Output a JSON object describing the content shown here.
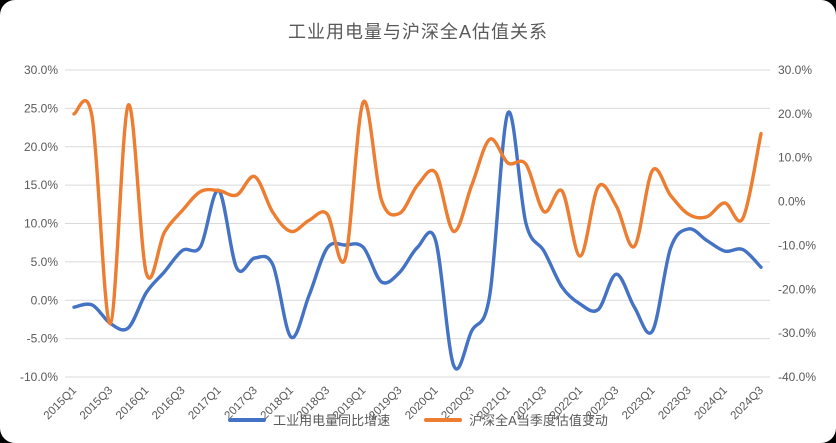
{
  "title": "工业用电量与沪深全A估值关系",
  "legend": {
    "series1_label": "工业用电量同比增速",
    "series2_label": "沪深全A当季度估值变动"
  },
  "colors": {
    "series1": "#4472C4",
    "series2": "#ED7D31",
    "gridline": "#D9D9D9",
    "axis_text": "#595959",
    "background": "#FFFFFF",
    "page_corner": "#000000"
  },
  "chart_data": {
    "type": "line",
    "title": "工业用电量与沪深全A估值关系",
    "grid": true,
    "legend_position": "bottom",
    "smooth_lines": true,
    "categories": [
      "2015Q1",
      "2015Q2",
      "2015Q3",
      "2015Q4",
      "2016Q1",
      "2016Q2",
      "2016Q3",
      "2016Q4",
      "2017Q1",
      "2017Q2",
      "2017Q3",
      "2017Q4",
      "2018Q1",
      "2018Q2",
      "2018Q3",
      "2018Q4",
      "2019Q1",
      "2019Q2",
      "2019Q3",
      "2019Q4",
      "2020Q1",
      "2020Q2",
      "2020Q3",
      "2020Q4",
      "2021Q1",
      "2021Q2",
      "2021Q3",
      "2021Q4",
      "2022Q1",
      "2022Q2",
      "2022Q3",
      "2022Q4",
      "2023Q1",
      "2023Q2",
      "2023Q3",
      "2023Q4",
      "2024Q1",
      "2024Q2",
      "2024Q3"
    ],
    "x_tick_labels": [
      "2015Q1",
      "2015Q3",
      "2016Q1",
      "2016Q3",
      "2017Q1",
      "2017Q3",
      "2018Q1",
      "2018Q3",
      "2019Q1",
      "2019Q3",
      "2020Q1",
      "2020Q3",
      "2021Q1",
      "2021Q3",
      "2022Q1",
      "2022Q3",
      "2023Q1",
      "2023Q3",
      "2024Q1",
      "2024Q3"
    ],
    "left_axis": {
      "min": -10,
      "max": 30,
      "step": 5,
      "labels": [
        "30.0%",
        "25.0%",
        "20.0%",
        "15.0%",
        "10.0%",
        "5.0%",
        "0.0%",
        "-5.0%",
        "-10.0%"
      ]
    },
    "right_axis": {
      "min": -40,
      "max": 30,
      "step": 10,
      "labels": [
        "30.0%",
        "20.0%",
        "10.0%",
        "0.0%",
        "-10.0%",
        "-20.0%",
        "-30.0%",
        "-40.0%"
      ]
    },
    "series": [
      {
        "name": "工业用电量同比增速",
        "axis": "left",
        "color": "#4472C4",
        "values": [
          -0.9,
          -0.6,
          -3.0,
          -3.6,
          1.0,
          3.7,
          6.5,
          7.0,
          14.3,
          4.2,
          5.5,
          4.6,
          -4.8,
          0.6,
          6.8,
          7.2,
          6.9,
          2.4,
          3.6,
          6.9,
          7.8,
          -8.5,
          -4.0,
          0.7,
          24.4,
          10.0,
          6.4,
          1.7,
          -0.5,
          -1.2,
          3.4,
          -0.9,
          -4.0,
          6.8,
          9.3,
          7.8,
          6.4,
          6.6,
          4.3
        ]
      },
      {
        "name": "沪深全A当季度估值变动",
        "axis": "right",
        "color": "#ED7D31",
        "values": [
          20.0,
          19.3,
          -27.8,
          22.0,
          -16.3,
          -7.0,
          -2.0,
          2.3,
          2.5,
          1.5,
          5.7,
          -2.5,
          -6.8,
          -4.3,
          -2.8,
          -13.0,
          22.7,
          0.5,
          -2.7,
          3.7,
          6.6,
          -6.8,
          3.7,
          14.2,
          8.8,
          8.5,
          -2.3,
          2.4,
          -12.4,
          3.4,
          -1.0,
          -10.2,
          7.1,
          1.4,
          -2.9,
          -3.5,
          -0.3,
          -3.8,
          15.5
        ]
      }
    ]
  }
}
